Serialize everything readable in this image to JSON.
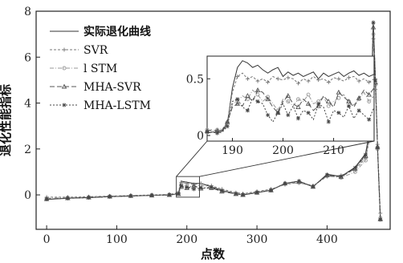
{
  "chart_data": {
    "type": "line",
    "xlabel": "点数",
    "ylabel": "退化性能指标",
    "xlim": [
      -15,
      490
    ],
    "ylim": [
      -1.5,
      8
    ],
    "xticks": [
      0,
      100,
      200,
      300,
      400
    ],
    "yticks": [
      0,
      2,
      4,
      6,
      8
    ],
    "legend_position": "top-left",
    "colors": {
      "actual": "#333333",
      "svr": "#777777",
      "lstm": "#999999",
      "mha_svr": "#555555",
      "mha_lstm": "#444444"
    },
    "series": [
      {
        "name": "实际退化曲线",
        "x": [
          0,
          30,
          60,
          90,
          120,
          150,
          175,
          188,
          192,
          200,
          210,
          220,
          235,
          250,
          270,
          280,
          300,
          320,
          340,
          360,
          380,
          400,
          420,
          440,
          455,
          462,
          466,
          469,
          472,
          476
        ],
        "y": [
          -0.2,
          -0.15,
          -0.12,
          -0.08,
          -0.05,
          -0.02,
          0.0,
          0.05,
          0.6,
          0.55,
          0.5,
          0.5,
          0.35,
          0.2,
          0.05,
          0.0,
          0.1,
          0.2,
          0.5,
          0.6,
          0.35,
          0.9,
          0.8,
          1.2,
          1.8,
          3.0,
          7.6,
          5.0,
          2.0,
          -1.1
        ]
      },
      {
        "name": "SVR",
        "x": [
          0,
          30,
          60,
          90,
          120,
          150,
          175,
          188,
          192,
          200,
          210,
          220,
          235,
          250,
          270,
          280,
          300,
          320,
          340,
          360,
          380,
          400,
          420,
          440,
          455,
          462,
          466,
          469,
          472,
          476
        ],
        "y": [
          -0.1,
          -0.1,
          -0.08,
          -0.05,
          -0.03,
          0.0,
          0.02,
          0.1,
          0.55,
          0.5,
          0.45,
          0.5,
          0.4,
          0.25,
          0.1,
          0.05,
          0.15,
          0.25,
          0.45,
          0.55,
          0.4,
          0.8,
          0.85,
          1.1,
          1.6,
          2.6,
          6.8,
          4.6,
          2.2,
          -0.8
        ]
      },
      {
        "name": "l STM",
        "x": [
          0,
          30,
          60,
          90,
          120,
          150,
          175,
          188,
          192,
          200,
          210,
          220,
          235,
          250,
          270,
          280,
          300,
          320,
          340,
          360,
          380,
          400,
          420,
          440,
          455,
          462,
          466,
          469,
          472,
          476
        ],
        "y": [
          -0.15,
          -0.12,
          -0.1,
          -0.06,
          -0.04,
          -0.01,
          0.01,
          0.08,
          0.45,
          0.4,
          0.35,
          0.42,
          0.3,
          0.18,
          0.05,
          0.02,
          0.12,
          0.22,
          0.48,
          0.52,
          0.38,
          0.82,
          0.75,
          1.0,
          1.5,
          2.8,
          7.0,
          4.8,
          2.0,
          -1.0
        ]
      },
      {
        "name": "MHA-SVR",
        "x": [
          0,
          30,
          60,
          90,
          120,
          150,
          175,
          188,
          192,
          200,
          210,
          220,
          235,
          250,
          270,
          280,
          300,
          320,
          340,
          360,
          380,
          400,
          420,
          440,
          455,
          462,
          466,
          469,
          472,
          476
        ],
        "y": [
          -0.18,
          -0.14,
          -0.11,
          -0.07,
          -0.04,
          -0.02,
          0.0,
          0.04,
          0.35,
          0.3,
          0.4,
          0.28,
          0.3,
          0.15,
          0.04,
          0.0,
          0.1,
          0.2,
          0.5,
          0.58,
          0.36,
          0.86,
          0.78,
          1.15,
          1.7,
          2.9,
          7.3,
          4.9,
          2.1,
          -1.05
        ]
      },
      {
        "name": "MHA-LSTM",
        "x": [
          0,
          30,
          60,
          90,
          120,
          150,
          175,
          188,
          192,
          200,
          210,
          220,
          235,
          250,
          270,
          280,
          300,
          320,
          340,
          360,
          380,
          400,
          420,
          440,
          455,
          462,
          466,
          469,
          472,
          476
        ],
        "y": [
          -0.19,
          -0.15,
          -0.12,
          -0.08,
          -0.05,
          -0.02,
          0.0,
          0.05,
          0.4,
          0.32,
          0.25,
          0.3,
          0.32,
          0.18,
          0.05,
          0.0,
          0.1,
          0.2,
          0.5,
          0.6,
          0.36,
          0.88,
          0.8,
          1.18,
          1.75,
          2.95,
          7.5,
          5.0,
          2.05,
          -1.08
        ]
      }
    ],
    "inset": {
      "xlim": [
        185,
        218
      ],
      "ylim": [
        -0.05,
        0.7
      ],
      "xticks": [
        190,
        200,
        210
      ],
      "yticks": [
        0,
        0.5
      ],
      "series": [
        {
          "name": "实际退化曲线",
          "x": [
            185,
            186,
            187,
            188,
            189,
            190,
            191,
            192,
            193,
            194,
            195,
            196,
            197,
            198,
            199,
            200,
            201,
            202,
            203,
            204,
            205,
            206,
            207,
            208,
            209,
            210,
            211,
            212,
            213,
            214,
            215,
            216,
            217,
            218
          ],
          "y": [
            0.02,
            0.03,
            0.03,
            0.04,
            0.1,
            0.42,
            0.6,
            0.66,
            0.64,
            0.6,
            0.62,
            0.58,
            0.55,
            0.58,
            0.6,
            0.52,
            0.56,
            0.53,
            0.55,
            0.52,
            0.54,
            0.56,
            0.5,
            0.55,
            0.52,
            0.54,
            0.56,
            0.52,
            0.55,
            0.57,
            0.53,
            0.55,
            0.52,
            0.54
          ]
        },
        {
          "name": "SVR",
          "x": [
            185,
            186,
            187,
            188,
            189,
            190,
            191,
            192,
            193,
            194,
            195,
            196,
            197,
            198,
            199,
            200,
            201,
            202,
            203,
            204,
            205,
            206,
            207,
            208,
            209,
            210,
            211,
            212,
            213,
            214,
            215,
            216,
            217,
            218
          ],
          "y": [
            0.03,
            0.03,
            0.04,
            0.05,
            0.12,
            0.38,
            0.52,
            0.55,
            0.5,
            0.52,
            0.48,
            0.5,
            0.47,
            0.52,
            0.5,
            0.49,
            0.51,
            0.5,
            0.46,
            0.5,
            0.48,
            0.52,
            0.49,
            0.5,
            0.47,
            0.51,
            0.5,
            0.48,
            0.51,
            0.52,
            0.48,
            0.5,
            0.47,
            0.5
          ]
        },
        {
          "name": "l STM",
          "x": [
            185,
            186,
            187,
            188,
            189,
            190,
            191,
            192,
            193,
            194,
            195,
            196,
            197,
            198,
            199,
            200,
            201,
            202,
            203,
            204,
            205,
            206,
            207,
            208,
            209,
            210,
            211,
            212,
            213,
            214,
            215,
            216,
            217,
            218
          ],
          "y": [
            0.05,
            0.04,
            0.05,
            0.06,
            0.1,
            0.28,
            0.3,
            0.35,
            0.32,
            0.4,
            0.36,
            0.3,
            0.34,
            0.28,
            0.22,
            0.32,
            0.3,
            0.26,
            0.32,
            0.3,
            0.36,
            0.28,
            0.3,
            0.34,
            0.26,
            0.3,
            0.33,
            0.36,
            0.3,
            0.27,
            0.32,
            0.38,
            0.3,
            0.35
          ]
        },
        {
          "name": "MHA-SVR",
          "x": [
            185,
            186,
            187,
            188,
            189,
            190,
            191,
            192,
            193,
            194,
            195,
            196,
            197,
            198,
            199,
            200,
            201,
            202,
            203,
            204,
            205,
            206,
            207,
            208,
            209,
            210,
            211,
            212,
            213,
            214,
            215,
            216,
            217,
            218
          ],
          "y": [
            0.04,
            0.05,
            0.04,
            0.05,
            0.12,
            0.25,
            0.28,
            0.26,
            0.35,
            0.3,
            0.4,
            0.38,
            0.32,
            0.25,
            0.2,
            0.3,
            0.35,
            0.28,
            0.25,
            0.32,
            0.28,
            0.22,
            0.26,
            0.35,
            0.3,
            0.25,
            0.38,
            0.34,
            0.3,
            0.25,
            0.33,
            0.4,
            0.36,
            0.42
          ]
        },
        {
          "name": "MHA-LSTM",
          "x": [
            185,
            186,
            187,
            188,
            189,
            190,
            191,
            192,
            193,
            194,
            195,
            196,
            197,
            198,
            199,
            200,
            201,
            202,
            203,
            204,
            205,
            206,
            207,
            208,
            209,
            210,
            211,
            212,
            213,
            214,
            215,
            216,
            217,
            218
          ],
          "y": [
            0.03,
            0.03,
            0.02,
            0.03,
            0.08,
            0.3,
            0.32,
            0.25,
            0.22,
            0.33,
            0.3,
            0.28,
            0.18,
            0.12,
            0.2,
            0.28,
            0.18,
            0.26,
            0.15,
            0.22,
            0.2,
            0.14,
            0.28,
            0.25,
            0.12,
            0.22,
            0.2,
            0.16,
            0.26,
            0.15,
            0.22,
            0.18,
            0.14,
            0.25
          ]
        }
      ]
    }
  }
}
